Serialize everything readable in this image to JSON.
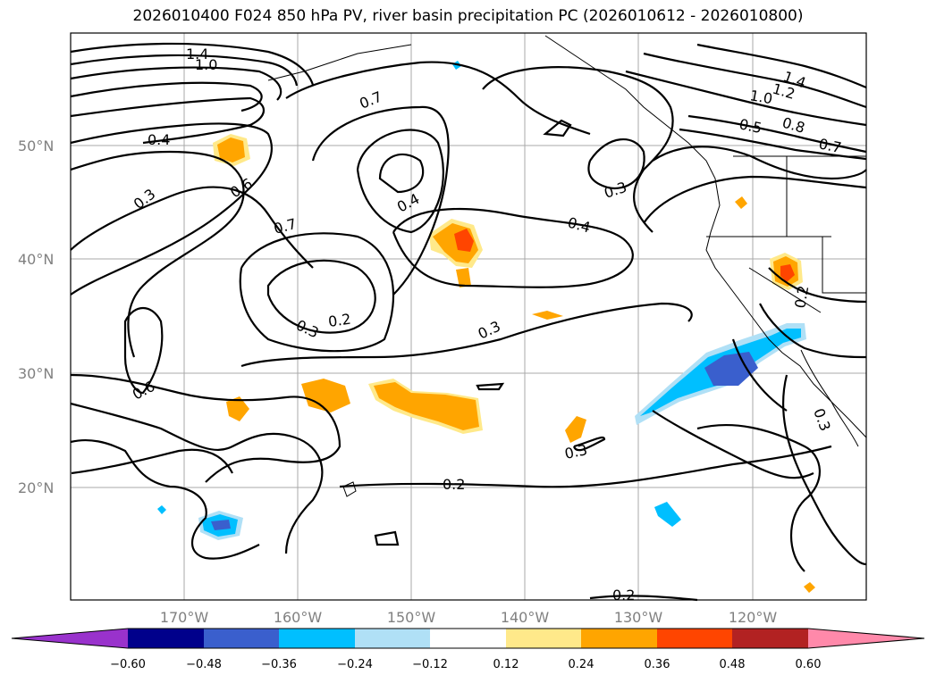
{
  "title": "2026010400 F024 850 hPa PV, river basin precipitation PC (2026010612 - 2026010800)",
  "map": {
    "projection": "cylindrical",
    "lon_labels": [
      "170°W",
      "160°W",
      "150°W",
      "140°W",
      "130°W",
      "120°W"
    ],
    "lat_labels": [
      "50°N",
      "40°N",
      "30°N",
      "20°N"
    ],
    "gridlines": true
  },
  "contour_labels": [
    {
      "text": "1.4"
    },
    {
      "text": "1.0"
    },
    {
      "text": "0.7"
    },
    {
      "text": "0.4"
    },
    {
      "text": "0.3"
    },
    {
      "text": "0.6"
    },
    {
      "text": "0.7"
    },
    {
      "text": "0.4"
    },
    {
      "text": "0.3"
    },
    {
      "text": "0.2"
    },
    {
      "text": "0.3"
    },
    {
      "text": "0.6"
    },
    {
      "text": "0.4"
    },
    {
      "text": "0.3"
    },
    {
      "text": "1.4"
    },
    {
      "text": "1.2"
    },
    {
      "text": "1.0"
    },
    {
      "text": "0.5"
    },
    {
      "text": "0.8"
    },
    {
      "text": "0.7"
    },
    {
      "text": "0.3"
    },
    {
      "text": "0.2"
    },
    {
      "text": "0.2"
    },
    {
      "text": "0.3"
    },
    {
      "text": "0.2"
    }
  ],
  "colorbar": {
    "ticks": [
      "−0.60",
      "−0.48",
      "−0.36",
      "−0.24",
      "−0.12",
      "0.12",
      "0.24",
      "0.36",
      "0.48",
      "0.60"
    ],
    "colors": [
      "#9932cc",
      "#00008b",
      "#3a5fcd",
      "#00bfff",
      "#b0e0f6",
      "#ffffff",
      "#ffe98a",
      "#ffa500",
      "#ff4500",
      "#b22222",
      "#ff89aa"
    ],
    "extend": "both"
  },
  "colors": {
    "contour": "#000000",
    "grid": "#a9a9a9",
    "label": "#808080"
  }
}
